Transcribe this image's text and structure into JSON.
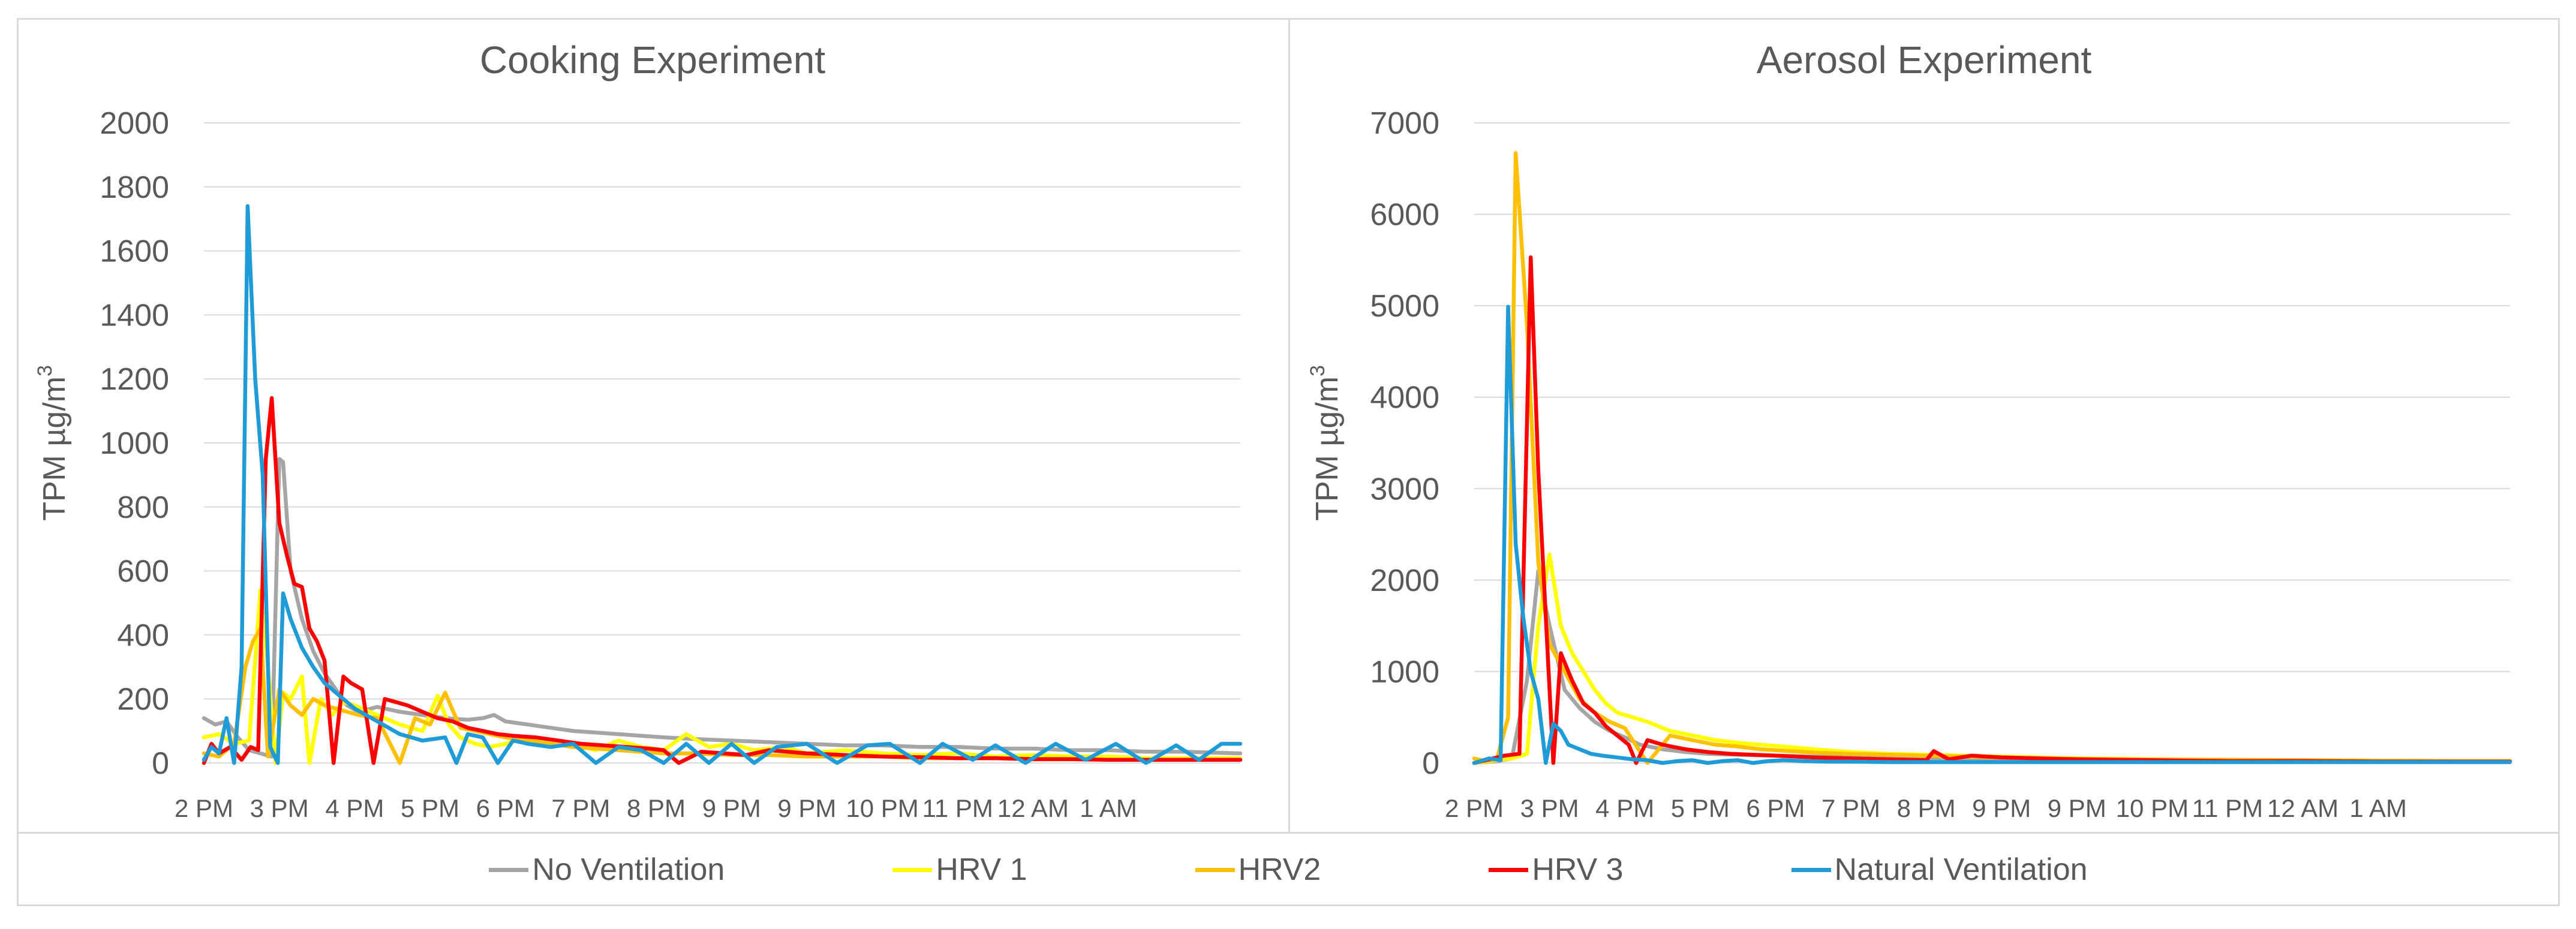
{
  "chart_data": [
    {
      "type": "line",
      "title": "Cooking Experiment",
      "ylabel": "TPM µg/m",
      "ylabel_sup": "3",
      "xlabel": "",
      "ylim": [
        0,
        2000
      ],
      "yticks": [
        0,
        200,
        400,
        600,
        800,
        1000,
        1200,
        1400,
        1600,
        1800,
        2000
      ],
      "xlim": [
        14,
        27.75
      ],
      "xticks": [
        {
          "v": 14,
          "label": "2 PM"
        },
        {
          "v": 15,
          "label": "3 PM"
        },
        {
          "v": 16,
          "label": "4 PM"
        },
        {
          "v": 17,
          "label": "5 PM"
        },
        {
          "v": 18,
          "label": "6 PM"
        },
        {
          "v": 19,
          "label": "7 PM"
        },
        {
          "v": 20,
          "label": "8 PM"
        },
        {
          "v": 21,
          "label": "9 PM"
        },
        {
          "v": 22,
          "label": "9 PM"
        },
        {
          "v": 23,
          "label": "10 PM"
        },
        {
          "v": 24,
          "label": "11 PM"
        },
        {
          "v": 25,
          "label": "12 AM"
        },
        {
          "v": 26,
          "label": "1 AM"
        }
      ],
      "grid": true,
      "series": [
        {
          "name": "No Ventilation",
          "color": "#a5a5a5",
          "x": [
            14,
            14.15,
            14.3,
            14.45,
            14.6,
            14.75,
            14.9,
            15.0,
            15.05,
            15.15,
            15.3,
            15.45,
            15.6,
            15.75,
            15.9,
            16.05,
            16.3,
            16.6,
            16.9,
            17.2,
            17.5,
            17.7,
            17.85,
            18.0,
            18.3,
            18.6,
            18.9,
            19.2,
            19.5,
            19.8,
            20.1,
            20.5,
            21,
            21.5,
            22,
            22.5,
            23,
            23.5,
            24,
            24.5,
            25,
            25.5,
            26,
            26.5,
            27,
            27.75
          ],
          "y": [
            140,
            120,
            130,
            80,
            40,
            30,
            20,
            950,
            940,
            600,
            450,
            350,
            280,
            230,
            180,
            160,
            175,
            160,
            150,
            140,
            135,
            140,
            150,
            130,
            120,
            110,
            100,
            95,
            90,
            85,
            80,
            75,
            70,
            65,
            60,
            55,
            55,
            50,
            50,
            45,
            45,
            40,
            40,
            35,
            35,
            30
          ]
        },
        {
          "name": "HRV 1",
          "color": "#ffff00",
          "x": [
            14,
            14.2,
            14.4,
            14.6,
            14.75,
            14.85,
            14.95,
            15.05,
            15.15,
            15.3,
            15.4,
            15.55,
            15.7,
            15.85,
            16.0,
            16.3,
            16.6,
            16.9,
            17.1,
            17.25,
            17.4,
            17.6,
            17.8,
            18.0,
            18.3,
            18.6,
            18.9,
            19.2,
            19.5,
            19.8,
            20.1,
            20.4,
            20.7,
            21.0,
            21.3,
            21.7,
            22,
            22.5,
            23,
            23.5,
            24,
            24.5,
            25,
            25.5,
            26,
            26.5,
            27,
            27.75
          ],
          "y": [
            80,
            90,
            60,
            70,
            540,
            300,
            0,
            220,
            200,
            270,
            0,
            200,
            150,
            190,
            180,
            150,
            120,
            100,
            210,
            120,
            80,
            60,
            50,
            60,
            80,
            50,
            60,
            40,
            70,
            50,
            40,
            90,
            50,
            60,
            40,
            50,
            30,
            40,
            30,
            25,
            30,
            20,
            25,
            20,
            20,
            15,
            15,
            15
          ]
        },
        {
          "name": "HRV2",
          "color": "#ffc000",
          "x": [
            14,
            14.2,
            14.4,
            14.55,
            14.65,
            14.75,
            14.85,
            15.0,
            15.15,
            15.3,
            15.45,
            15.6,
            15.75,
            15.9,
            16.05,
            16.3,
            16.6,
            16.8,
            17.0,
            17.2,
            17.4,
            17.6,
            17.8,
            18.0,
            18.3,
            18.6,
            18.9,
            19.2,
            19.5,
            19.8,
            20.1,
            20.5,
            21,
            21.5,
            22,
            22.5,
            23,
            23.5,
            24,
            24.5,
            25,
            25.5,
            26,
            26.5,
            27,
            27.75
          ],
          "y": [
            30,
            20,
            60,
            300,
            380,
            420,
            20,
            230,
            180,
            150,
            200,
            180,
            170,
            160,
            150,
            140,
            0,
            140,
            120,
            220,
            110,
            100,
            90,
            80,
            70,
            60,
            50,
            45,
            40,
            35,
            30,
            30,
            25,
            25,
            20,
            20,
            20,
            15,
            15,
            15,
            12,
            12,
            10,
            10,
            10,
            10
          ]
        },
        {
          "name": "HRV 3",
          "color": "#ff0000",
          "x": [
            14,
            14.1,
            14.2,
            14.35,
            14.5,
            14.62,
            14.72,
            14.82,
            14.9,
            15.0,
            15.1,
            15.2,
            15.3,
            15.4,
            15.5,
            15.6,
            15.72,
            15.85,
            15.95,
            16.1,
            16.25,
            16.4,
            16.55,
            16.7,
            16.9,
            17.1,
            17.3,
            17.5,
            17.7,
            17.9,
            18.1,
            18.4,
            18.7,
            19.0,
            19.3,
            19.6,
            19.9,
            20.1,
            20.3,
            20.6,
            20.9,
            21.2,
            21.5,
            22,
            22.5,
            23,
            23.5,
            24,
            24.5,
            25,
            25.5,
            26,
            26.5,
            27,
            27.75
          ],
          "y": [
            0,
            60,
            30,
            50,
            10,
            50,
            40,
            950,
            1140,
            750,
            650,
            560,
            550,
            420,
            380,
            320,
            0,
            270,
            250,
            230,
            0,
            200,
            190,
            180,
            160,
            140,
            130,
            110,
            100,
            90,
            85,
            80,
            70,
            60,
            55,
            50,
            45,
            40,
            0,
            35,
            30,
            25,
            40,
            30,
            25,
            20,
            18,
            15,
            15,
            12,
            12,
            10,
            10,
            10,
            10
          ]
        },
        {
          "name": "Natural Ventilation",
          "color": "#1f9bd7",
          "x": [
            14,
            14.1,
            14.2,
            14.3,
            14.4,
            14.5,
            14.58,
            14.68,
            14.78,
            14.88,
            14.98,
            15.05,
            15.15,
            15.3,
            15.45,
            15.6,
            15.8,
            16.0,
            16.3,
            16.6,
            16.9,
            17.2,
            17.35,
            17.5,
            17.7,
            17.9,
            18.1,
            18.3,
            18.6,
            18.9,
            19.2,
            19.5,
            19.8,
            20.1,
            20.4,
            20.7,
            21.0,
            21.3,
            21.6,
            22,
            22.4,
            22.8,
            23.1,
            23.5,
            23.8,
            24.2,
            24.5,
            24.9,
            25.3,
            25.7,
            26.1,
            26.5,
            26.9,
            27.2,
            27.5,
            27.75
          ],
          "y": [
            10,
            50,
            30,
            140,
            0,
            300,
            1740,
            1200,
            900,
            50,
            0,
            530,
            450,
            360,
            300,
            250,
            210,
            170,
            130,
            90,
            70,
            80,
            0,
            90,
            80,
            0,
            70,
            60,
            50,
            60,
            0,
            50,
            40,
            0,
            60,
            0,
            60,
            0,
            50,
            60,
            0,
            55,
            60,
            0,
            60,
            10,
            55,
            0,
            60,
            10,
            60,
            0,
            55,
            10,
            60,
            60
          ]
        }
      ]
    },
    {
      "type": "line",
      "title": "Aerosol Experiment",
      "ylabel": "TPM µg/m",
      "ylabel_sup": "3",
      "xlabel": "",
      "ylim": [
        0,
        7000
      ],
      "yticks": [
        0,
        1000,
        2000,
        3000,
        4000,
        5000,
        6000,
        7000
      ],
      "xlim": [
        14,
        27.75
      ],
      "xticks": [
        {
          "v": 14,
          "label": "2 PM"
        },
        {
          "v": 15,
          "label": "3 PM"
        },
        {
          "v": 16,
          "label": "4 PM"
        },
        {
          "v": 17,
          "label": "5 PM"
        },
        {
          "v": 18,
          "label": "6 PM"
        },
        {
          "v": 19,
          "label": "7 PM"
        },
        {
          "v": 20,
          "label": "8 PM"
        },
        {
          "v": 21,
          "label": "9 PM"
        },
        {
          "v": 22,
          "label": "9 PM"
        },
        {
          "v": 23,
          "label": "10 PM"
        },
        {
          "v": 24,
          "label": "11 PM"
        },
        {
          "v": 25,
          "label": "12 AM"
        },
        {
          "v": 26,
          "label": "1 AM"
        }
      ],
      "grid": true,
      "series": [
        {
          "name": "No Ventilation",
          "color": "#a5a5a5",
          "x": [
            14,
            14.3,
            14.5,
            14.7,
            14.85,
            15.0,
            15.2,
            15.4,
            15.6,
            15.8,
            16.0,
            16.2,
            16.5,
            16.8,
            17.1,
            17.5,
            18,
            18.5,
            19,
            19.5,
            20,
            21,
            22,
            23,
            24,
            25,
            26,
            27,
            27.75
          ],
          "y": [
            0,
            20,
            50,
            900,
            2100,
            1500,
            800,
            600,
            450,
            350,
            280,
            200,
            150,
            120,
            100,
            90,
            80,
            70,
            60,
            50,
            45,
            40,
            35,
            30,
            25,
            20,
            20,
            15,
            15
          ]
        },
        {
          "name": "HRV 1",
          "color": "#ffff00",
          "x": [
            14,
            14.3,
            14.5,
            14.7,
            14.85,
            15.0,
            15.15,
            15.3,
            15.45,
            15.6,
            15.75,
            15.9,
            16.1,
            16.3,
            16.6,
            16.9,
            17.2,
            17.5,
            17.8,
            18.1,
            18.5,
            19,
            19.5,
            20,
            20.5,
            21,
            21.5,
            22,
            23,
            24,
            25,
            26,
            27,
            27.75
          ],
          "y": [
            0,
            30,
            50,
            100,
            1500,
            2280,
            1500,
            1200,
            1000,
            800,
            650,
            550,
            500,
            450,
            350,
            300,
            250,
            220,
            200,
            180,
            150,
            120,
            100,
            90,
            80,
            70,
            60,
            50,
            40,
            35,
            30,
            25,
            20,
            20
          ]
        },
        {
          "name": "HRV2",
          "color": "#ffc000",
          "x": [
            14,
            14.15,
            14.3,
            14.45,
            14.55,
            14.7,
            14.85,
            15.0,
            15.2,
            15.4,
            15.6,
            15.8,
            16.0,
            16.3,
            16.6,
            16.9,
            17.2,
            17.5,
            17.8,
            18.2,
            18.6,
            19,
            19.5,
            20,
            20.5,
            21,
            21.5,
            22,
            23,
            24,
            25,
            26,
            27,
            27.75
          ],
          "y": [
            50,
            20,
            40,
            500,
            6670,
            4800,
            2200,
            1300,
            1000,
            700,
            550,
            450,
            380,
            0,
            300,
            250,
            200,
            180,
            150,
            130,
            110,
            100,
            90,
            80,
            70,
            60,
            50,
            45,
            40,
            35,
            30,
            25,
            20,
            20
          ]
        },
        {
          "name": "HRV 3",
          "color": "#ff0000",
          "x": [
            14,
            14.2,
            14.4,
            14.6,
            14.75,
            14.85,
            14.95,
            15.05,
            15.15,
            15.3,
            15.45,
            15.6,
            15.75,
            15.9,
            16.05,
            16.15,
            16.3,
            16.5,
            16.8,
            17.1,
            17.4,
            17.7,
            18,
            18.5,
            19,
            19.5,
            20,
            20.1,
            20.3,
            20.6,
            21,
            21.5,
            22,
            22.5,
            23,
            23.5,
            24,
            25,
            26,
            27,
            27.75
          ],
          "y": [
            0,
            40,
            80,
            100,
            5530,
            3200,
            1600,
            0,
            1200,
            900,
            650,
            550,
            400,
            300,
            200,
            0,
            250,
            200,
            150,
            120,
            100,
            90,
            80,
            60,
            50,
            40,
            30,
            130,
            40,
            80,
            60,
            50,
            40,
            35,
            30,
            25,
            20,
            20,
            15,
            15,
            15
          ]
        },
        {
          "name": "Natural Ventilation",
          "color": "#1f9bd7",
          "x": [
            14,
            14.2,
            14.35,
            14.45,
            14.55,
            14.65,
            14.75,
            14.85,
            14.95,
            15.05,
            15.15,
            15.25,
            15.4,
            15.55,
            15.7,
            15.9,
            16.1,
            16.3,
            16.5,
            16.7,
            16.9,
            17.1,
            17.3,
            17.5,
            17.7,
            17.9,
            18.1,
            18.4,
            18.7,
            19,
            19.5,
            20,
            21,
            22,
            23,
            24,
            25,
            26,
            27,
            27.75
          ],
          "y": [
            0,
            50,
            30,
            4990,
            2400,
            1600,
            1000,
            700,
            0,
            430,
            350,
            200,
            150,
            100,
            80,
            60,
            40,
            30,
            0,
            20,
            30,
            0,
            20,
            30,
            0,
            20,
            30,
            20,
            15,
            15,
            10,
            10,
            10,
            10,
            10,
            10,
            10,
            10,
            10,
            10
          ]
        }
      ]
    }
  ],
  "legend": [
    {
      "label": "No Ventilation",
      "color": "#a5a5a5"
    },
    {
      "label": "HRV 1",
      "color": "#ffff00"
    },
    {
      "label": "HRV2",
      "color": "#ffc000"
    },
    {
      "label": "HRV 3",
      "color": "#ff0000"
    },
    {
      "label": "Natural Ventilation",
      "color": "#1f9bd7"
    }
  ]
}
